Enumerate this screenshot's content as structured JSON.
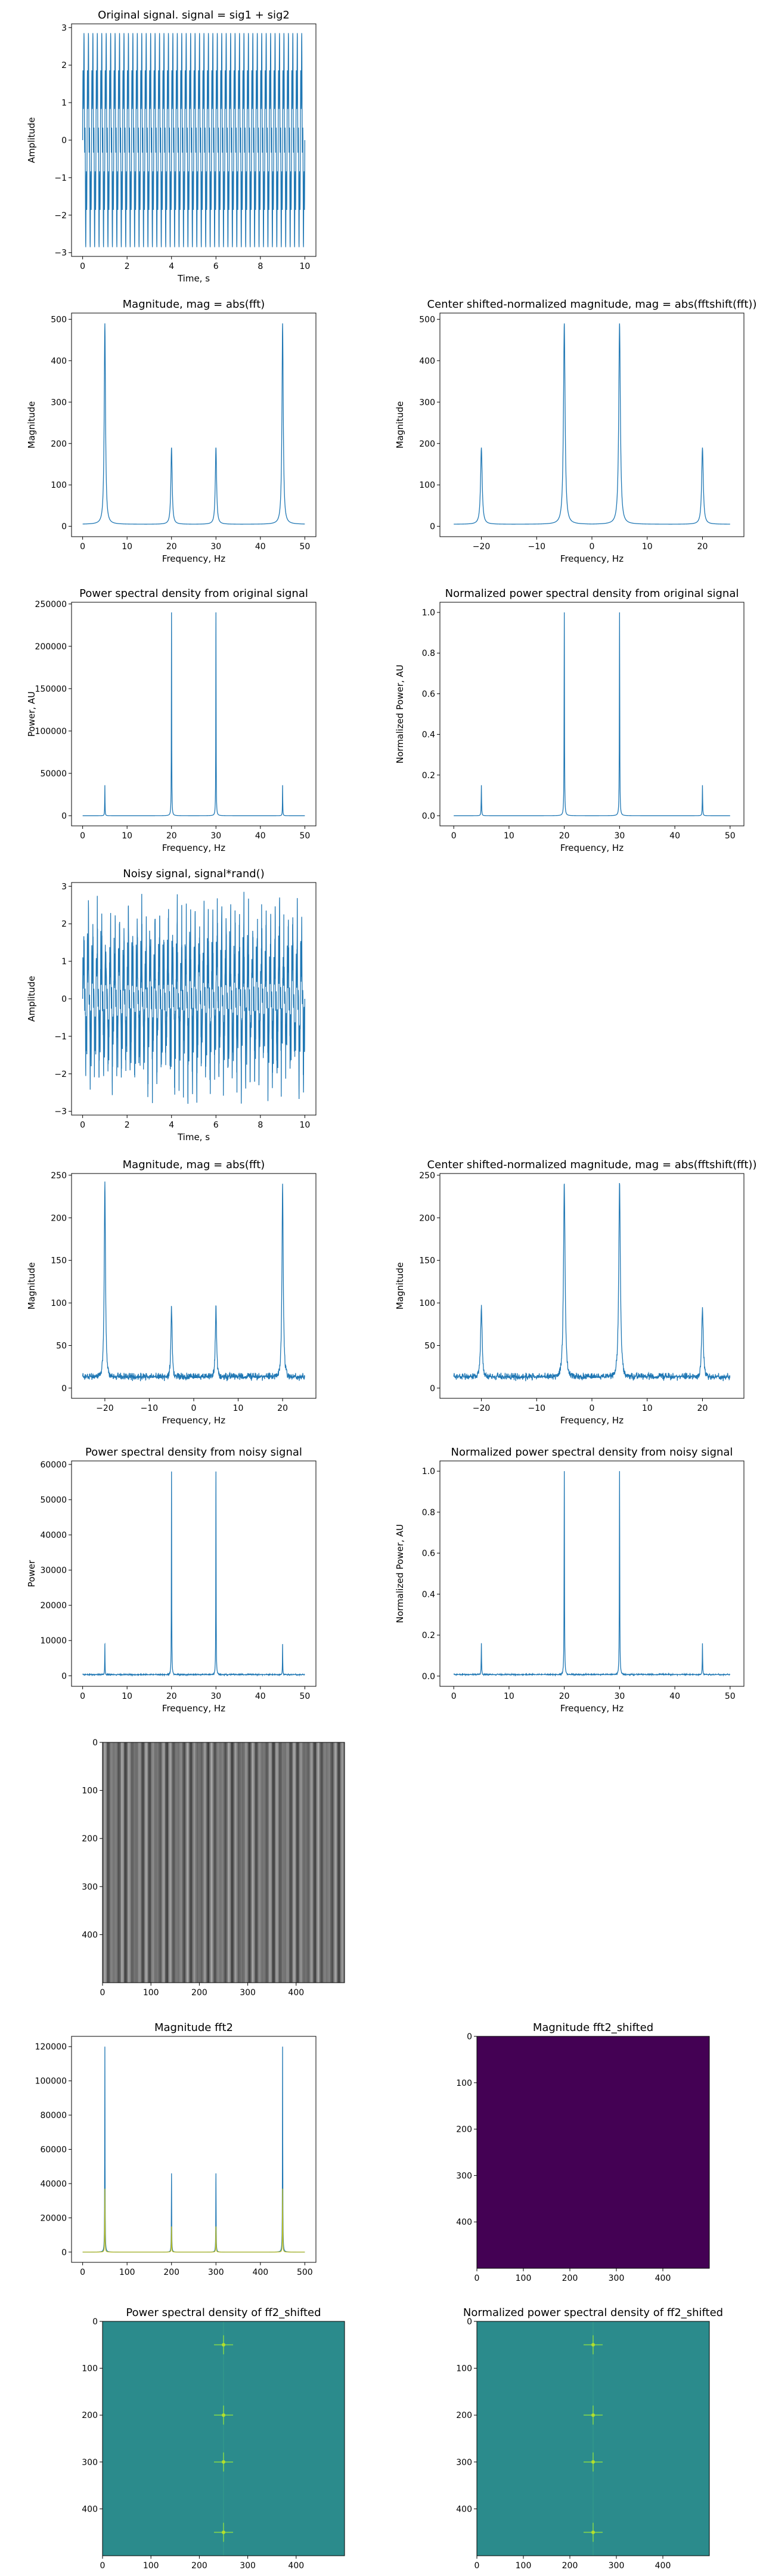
{
  "figure": {
    "background": "#ffffff",
    "line_color": "#1f77b4",
    "overlay_color": "#bcbd22"
  },
  "chart_data": [
    {
      "id": "orig-signal",
      "type": "line",
      "title": "Original signal. signal = sig1 + sig2",
      "xlabel": "Time, s",
      "ylabel": "Amplitude",
      "xlim": [
        -0.5,
        10.5
      ],
      "ylim": [
        -3.1,
        3.1
      ],
      "xticks": [
        0,
        2,
        4,
        6,
        8,
        10
      ],
      "yticks": [
        -3,
        -2,
        -1,
        0,
        1,
        2,
        3
      ],
      "series": [
        {
          "color": "#1f77b4",
          "signal": {
            "t0": 0,
            "t1": 10,
            "components": [
              {
                "amp": 2,
                "freq": 5
              },
              {
                "amp": 1,
                "freq": 20
              }
            ]
          }
        }
      ]
    },
    {
      "id": "mag-fft",
      "type": "line",
      "title": "Magnitude, mag = abs(fft)",
      "xlabel": "Frequency, Hz",
      "ylabel": "Magnitude",
      "xlim": [
        -2.5,
        52.5
      ],
      "ylim": [
        -25,
        515
      ],
      "xticks": [
        0,
        10,
        20,
        30,
        40,
        50
      ],
      "yticks": [
        0,
        100,
        200,
        300,
        400,
        500
      ],
      "series": [
        {
          "color": "#1f77b4",
          "spectrum": {
            "x0": 0,
            "x1": 50,
            "base": 5,
            "peaks": [
              {
                "x": 5,
                "y": 490
              },
              {
                "x": 20,
                "y": 190
              },
              {
                "x": 30,
                "y": 190
              },
              {
                "x": 45,
                "y": 490
              }
            ]
          }
        }
      ]
    },
    {
      "id": "mag-fftshift",
      "type": "line",
      "title": "Center shifted-normalized magnitude, mag = abs(fftshift(fft))",
      "xlabel": "Frequency, Hz",
      "ylabel": "Magnitude",
      "xlim": [
        -27.5,
        27.5
      ],
      "ylim": [
        -25,
        515
      ],
      "xticks": [
        -20,
        -10,
        0,
        10,
        20
      ],
      "yticks": [
        0,
        100,
        200,
        300,
        400,
        500
      ],
      "series": [
        {
          "color": "#1f77b4",
          "spectrum": {
            "x0": -25,
            "x1": 25,
            "base": 5,
            "peaks": [
              {
                "x": -20,
                "y": 190
              },
              {
                "x": -5,
                "y": 490
              },
              {
                "x": 5,
                "y": 490
              },
              {
                "x": 20,
                "y": 190
              }
            ]
          }
        }
      ]
    },
    {
      "id": "psd-orig",
      "type": "line",
      "title": "Power spectral density from original signal",
      "xlabel": "Frequency, Hz",
      "ylabel": "Power, AU",
      "xlim": [
        -2.5,
        52.5
      ],
      "ylim": [
        -12000,
        252000
      ],
      "xticks": [
        0,
        10,
        20,
        30,
        40,
        50
      ],
      "yticks": [
        0,
        50000,
        100000,
        150000,
        200000,
        250000
      ],
      "series": [
        {
          "color": "#1f77b4",
          "spectrum": {
            "x0": 0,
            "x1": 50,
            "base": 0,
            "sharp": true,
            "peaks": [
              {
                "x": 5,
                "y": 36000
              },
              {
                "x": 20,
                "y": 240000
              },
              {
                "x": 30,
                "y": 240000
              },
              {
                "x": 45,
                "y": 36000
              }
            ]
          }
        }
      ]
    },
    {
      "id": "npsd-orig",
      "type": "line",
      "title": "Normalized power spectral density from original signal",
      "xlabel": "Frequency, Hz",
      "ylabel": "Normalized Power, AU",
      "xlim": [
        -2.5,
        52.5
      ],
      "ylim": [
        -0.05,
        1.05
      ],
      "xticks": [
        0,
        10,
        20,
        30,
        40,
        50
      ],
      "yticks": [
        0.0,
        0.2,
        0.4,
        0.6,
        0.8,
        1.0
      ],
      "series": [
        {
          "color": "#1f77b4",
          "spectrum": {
            "x0": 0,
            "x1": 50,
            "base": 0,
            "sharp": true,
            "peaks": [
              {
                "x": 5,
                "y": 0.15
              },
              {
                "x": 20,
                "y": 1.0
              },
              {
                "x": 30,
                "y": 1.0
              },
              {
                "x": 45,
                "y": 0.15
              }
            ]
          }
        }
      ]
    },
    {
      "id": "noisy-signal",
      "type": "line",
      "title": "Noisy signal, signal*rand()",
      "xlabel": "Time, s",
      "ylabel": "Amplitude",
      "xlim": [
        -0.5,
        10.5
      ],
      "ylim": [
        -3.1,
        3.1
      ],
      "xticks": [
        0,
        2,
        4,
        6,
        8,
        10
      ],
      "yticks": [
        -3,
        -2,
        -1,
        0,
        1,
        2,
        3
      ],
      "series": [
        {
          "color": "#1f77b4",
          "signal": {
            "t0": 0,
            "t1": 10,
            "noisy": true,
            "components": [
              {
                "amp": 2,
                "freq": 5
              },
              {
                "amp": 1,
                "freq": 20
              }
            ]
          }
        }
      ]
    },
    {
      "id": "mag-fft-noisy",
      "type": "line",
      "title": "Magnitude, mag = abs(fft)",
      "xlabel": "Frequency, Hz",
      "ylabel": "Magnitude",
      "xlim": [
        -27.5,
        27.5
      ],
      "ylim": [
        -12,
        252
      ],
      "xticks": [
        -20,
        -10,
        0,
        10,
        20
      ],
      "yticks": [
        0,
        50,
        100,
        150,
        200,
        250
      ],
      "series": [
        {
          "color": "#1f77b4",
          "spectrum": {
            "x0": -25,
            "x1": 25,
            "base": 10,
            "noise": 8,
            "peaks": [
              {
                "x": -20,
                "y": 240
              },
              {
                "x": -5,
                "y": 95
              },
              {
                "x": 5,
                "y": 95
              },
              {
                "x": 20,
                "y": 240
              }
            ]
          }
        }
      ]
    },
    {
      "id": "mag-fftshift-noisy",
      "type": "line",
      "title": "Center shifted-normalized magnitude, mag = abs(fftshift(fft))",
      "xlabel": "Frequency, Hz",
      "ylabel": "Magnitude",
      "xlim": [
        -27.5,
        27.5
      ],
      "ylim": [
        -12,
        252
      ],
      "xticks": [
        -20,
        -10,
        0,
        10,
        20
      ],
      "yticks": [
        0,
        50,
        100,
        150,
        200,
        250
      ],
      "series": [
        {
          "color": "#1f77b4",
          "spectrum": {
            "x0": -25,
            "x1": 25,
            "base": 10,
            "noise": 8,
            "peaks": [
              {
                "x": -20,
                "y": 95
              },
              {
                "x": -5,
                "y": 240
              },
              {
                "x": 5,
                "y": 240
              },
              {
                "x": 20,
                "y": 95
              }
            ]
          }
        }
      ]
    },
    {
      "id": "psd-noisy",
      "type": "line",
      "title": "Power spectral density from noisy signal",
      "xlabel": "Frequency, Hz",
      "ylabel": "Power",
      "xlim": [
        -2.5,
        52.5
      ],
      "ylim": [
        -3000,
        61000
      ],
      "xticks": [
        0,
        10,
        20,
        30,
        40,
        50
      ],
      "yticks": [
        0,
        10000,
        20000,
        30000,
        40000,
        50000,
        60000
      ],
      "series": [
        {
          "color": "#1f77b4",
          "spectrum": {
            "x0": 0,
            "x1": 50,
            "base": 200,
            "noise": 300,
            "sharp": true,
            "peaks": [
              {
                "x": 5,
                "y": 9000
              },
              {
                "x": 20,
                "y": 58000
              },
              {
                "x": 30,
                "y": 58000
              },
              {
                "x": 45,
                "y": 9000
              }
            ]
          }
        }
      ]
    },
    {
      "id": "npsd-noisy",
      "type": "line",
      "title": "Normalized power spectral density from noisy signal",
      "xlabel": "Frequency, Hz",
      "ylabel": "Normalized Power, AU",
      "xlim": [
        -2.5,
        52.5
      ],
      "ylim": [
        -0.05,
        1.05
      ],
      "xticks": [
        0,
        10,
        20,
        30,
        40,
        50
      ],
      "yticks": [
        0.0,
        0.2,
        0.4,
        0.6,
        0.8,
        1.0
      ],
      "series": [
        {
          "color": "#1f77b4",
          "spectrum": {
            "x0": 0,
            "x1": 50,
            "base": 0.005,
            "noise": 0.006,
            "sharp": true,
            "peaks": [
              {
                "x": 5,
                "y": 0.16
              },
              {
                "x": 20,
                "y": 1.0
              },
              {
                "x": 30,
                "y": 1.0
              },
              {
                "x": 45,
                "y": 0.16
              }
            ]
          }
        }
      ]
    },
    {
      "id": "image-2d",
      "type": "heatmap",
      "title": "",
      "xlim": [
        0,
        500
      ],
      "ylim": [
        500,
        0
      ],
      "xticks": [
        0,
        100,
        200,
        300,
        400
      ],
      "yticks": [
        0,
        100,
        200,
        300,
        400
      ],
      "colormap": "gray",
      "pattern": "vertical-stripes"
    },
    {
      "id": "mag-fft2",
      "type": "line",
      "title": "Magnitude fft2",
      "xlim": [
        -25,
        525
      ],
      "ylim": [
        -6000,
        126000
      ],
      "xticks": [
        0,
        100,
        200,
        300,
        400,
        500
      ],
      "yticks": [
        0,
        20000,
        40000,
        60000,
        80000,
        100000,
        120000
      ],
      "series": [
        {
          "color": "#1f77b4",
          "spectrum": {
            "x0": 0,
            "x1": 500,
            "base": 0,
            "sharp": true,
            "peaks": [
              {
                "x": 50,
                "y": 120000
              },
              {
                "x": 200,
                "y": 46000
              },
              {
                "x": 300,
                "y": 46000
              },
              {
                "x": 450,
                "y": 120000
              }
            ]
          }
        },
        {
          "color": "#bcbd22",
          "spectrum": {
            "x0": 0,
            "x1": 500,
            "base": 0,
            "sharp": true,
            "peaks": [
              {
                "x": 50,
                "y": 37000
              },
              {
                "x": 200,
                "y": 15000
              },
              {
                "x": 300,
                "y": 15000
              },
              {
                "x": 450,
                "y": 37000
              }
            ]
          }
        }
      ]
    },
    {
      "id": "mag-fft2-shifted",
      "type": "heatmap",
      "title": "Magnitude fft2_shifted",
      "xlim": [
        0,
        500
      ],
      "ylim": [
        500,
        0
      ],
      "xticks": [
        0,
        100,
        200,
        300,
        400
      ],
      "yticks": [
        0,
        100,
        200,
        300,
        400
      ],
      "colormap": "viridis",
      "background": "#440154",
      "pattern": "dark"
    },
    {
      "id": "psd-fft2-shifted",
      "type": "heatmap",
      "title": "Power spectral density of ff2_shifted",
      "xlim": [
        0,
        500
      ],
      "ylim": [
        500,
        0
      ],
      "xticks": [
        0,
        100,
        200,
        300,
        400
      ],
      "yticks": [
        0,
        100,
        200,
        300,
        400
      ],
      "colormap": "viridis",
      "background": "#2b8b8c",
      "bright_points": [
        {
          "x": 250,
          "y": 50
        },
        {
          "x": 250,
          "y": 200
        },
        {
          "x": 250,
          "y": 300
        },
        {
          "x": 250,
          "y": 450
        }
      ]
    },
    {
      "id": "npsd-fft2-shifted",
      "type": "heatmap",
      "title": "Normalized power spectral density of ff2_shifted",
      "xlim": [
        0,
        500
      ],
      "ylim": [
        500,
        0
      ],
      "xticks": [
        0,
        100,
        200,
        300,
        400
      ],
      "yticks": [
        0,
        100,
        200,
        300,
        400
      ],
      "colormap": "viridis",
      "background": "#2b8b8c",
      "bright_points": [
        {
          "x": 250,
          "y": 50
        },
        {
          "x": 250,
          "y": 200
        },
        {
          "x": 250,
          "y": 300
        },
        {
          "x": 250,
          "y": 450
        }
      ]
    }
  ]
}
